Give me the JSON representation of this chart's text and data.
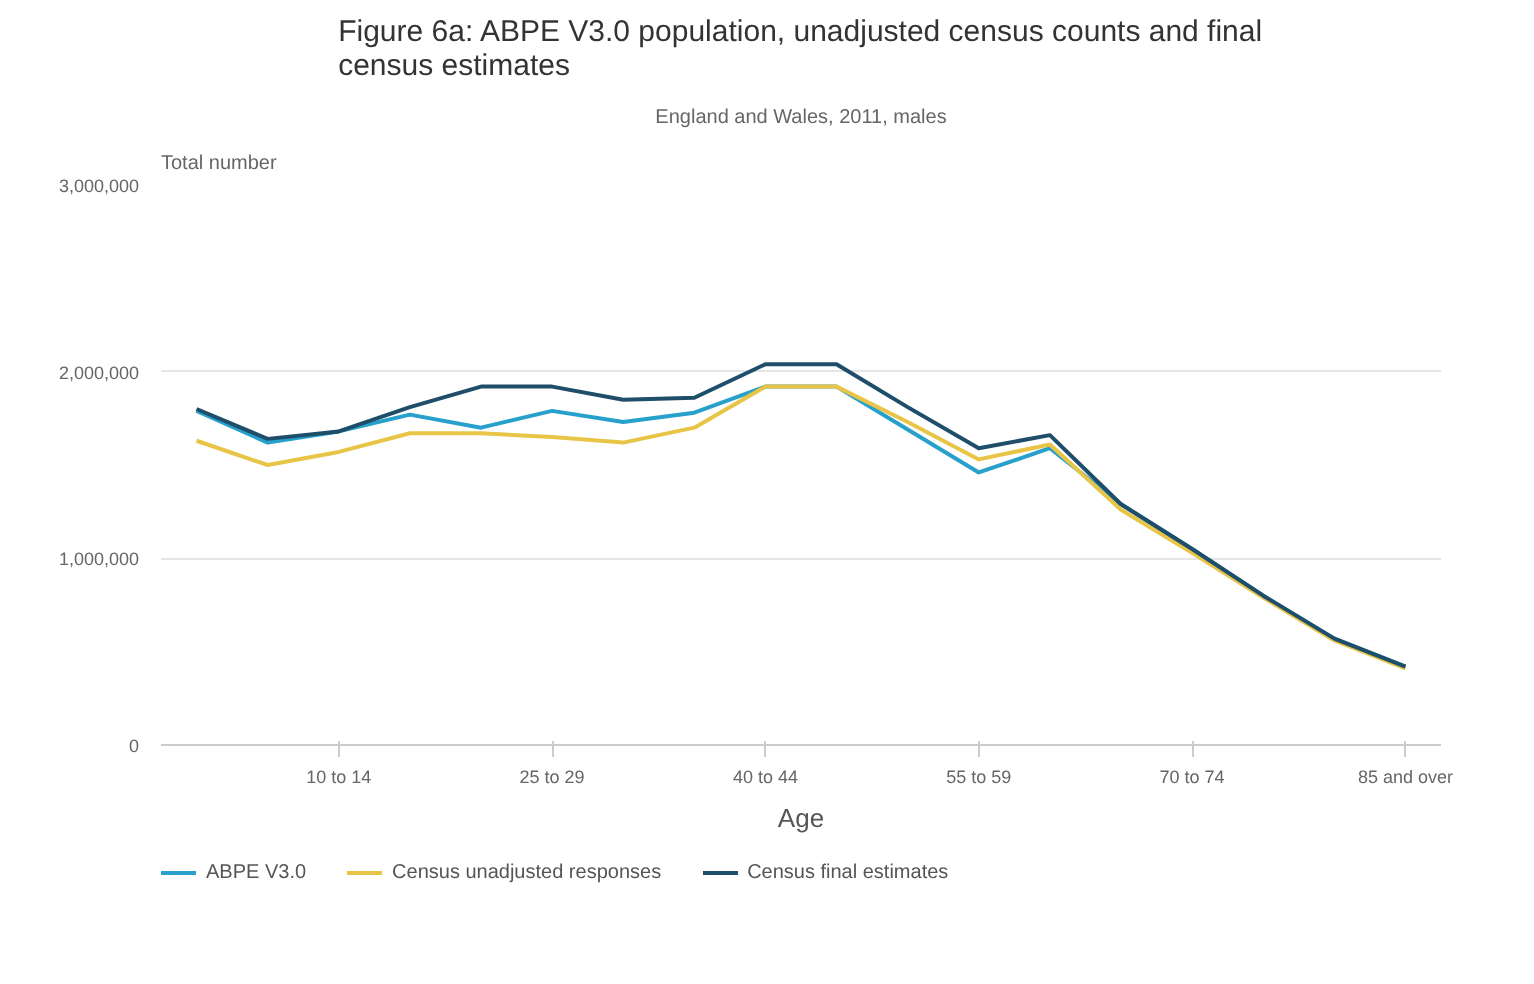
{
  "chart_data": {
    "type": "line",
    "title": "Figure 6a: ABPE V3.0 population, unadjusted census counts and final census estimates",
    "subtitle": "England and Wales, 2011, males",
    "xlabel": "Age",
    "ylabel": "Total number",
    "categories": [
      null,
      null,
      "10 to 14",
      null,
      null,
      "25 to 29",
      null,
      null,
      "40 to 44",
      null,
      null,
      "55 to 59",
      null,
      null,
      "70 to 74",
      null,
      null,
      "85 and over"
    ],
    "series": [
      {
        "name": "ABPE V3.0",
        "color": "#27a0cc",
        "values": [
          1790000,
          1620000,
          1680000,
          1770000,
          1700000,
          1790000,
          1730000,
          1780000,
          1920000,
          1920000,
          1690000,
          1460000,
          1590000,
          1290000,
          1050000,
          800000,
          570000,
          420000
        ]
      },
      {
        "name": "Census unadjusted responses",
        "color": "#e8c547",
        "values": [
          1630000,
          1500000,
          1570000,
          1670000,
          1670000,
          1650000,
          1620000,
          1700000,
          1920000,
          1920000,
          1730000,
          1530000,
          1610000,
          1260000,
          1030000,
          790000,
          560000,
          410000
        ]
      },
      {
        "name": "Census final estimates",
        "color": "#1f4e6b",
        "values": [
          1800000,
          1640000,
          1680000,
          1810000,
          1920000,
          1920000,
          1850000,
          1860000,
          2040000,
          2040000,
          1810000,
          1590000,
          1660000,
          1290000,
          1050000,
          800000,
          570000,
          420000
        ]
      }
    ],
    "ylim": [
      0,
      3000000
    ],
    "yticks": [
      0,
      {
        "value": 1000000,
        "label": "1,000,000"
      },
      {
        "value": 2000000,
        "label": "2,000,000"
      },
      {
        "value": 3000000,
        "label": "3,000,000"
      }
    ],
    "grid": "y",
    "legend": "bottom",
    "marker": "none",
    "line_style": "solid"
  }
}
